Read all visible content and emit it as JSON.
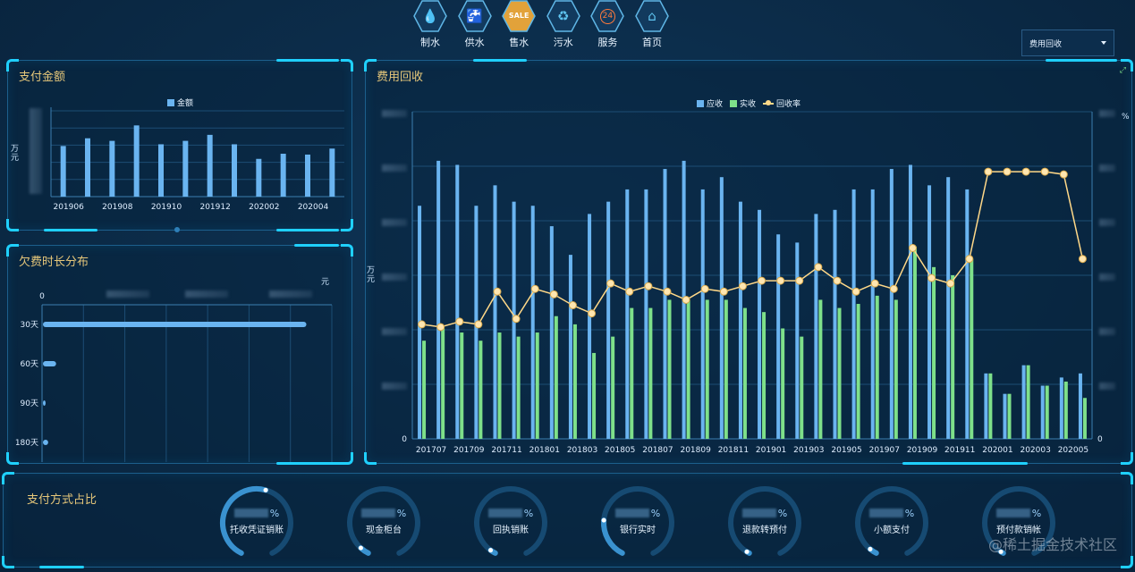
{
  "nav": {
    "items": [
      {
        "label": "制水",
        "icon": "water-drop-icon",
        "glyph": "💧",
        "active": false
      },
      {
        "label": "供水",
        "icon": "faucet-icon",
        "glyph": "🚰",
        "active": false
      },
      {
        "label": "售水",
        "icon": "sale-tag-icon",
        "glyph": "SALE",
        "active": true
      },
      {
        "label": "污水",
        "icon": "recycle-icon",
        "glyph": "♻",
        "active": false
      },
      {
        "label": "服务",
        "icon": "service-24h-icon",
        "glyph": "24",
        "active": false
      },
      {
        "label": "首页",
        "icon": "home-icon",
        "glyph": "⌂",
        "active": false
      }
    ]
  },
  "select": {
    "value": "费用回收"
  },
  "pay_amount": {
    "title": "支付金额",
    "legend": "金额",
    "unit": "万\n元",
    "x_labels": [
      "201906",
      "201908",
      "201910",
      "201912",
      "202002",
      "202004"
    ]
  },
  "arrears": {
    "title": "欠费时长分布",
    "unit": "元",
    "zero": "0"
  },
  "recovery": {
    "title": "费用回收",
    "legend_receivable": "应收",
    "legend_received": "实收",
    "legend_rate": "回收率",
    "left_unit": "万\n元",
    "right_unit": "%",
    "left_zero": "0",
    "right_zero": "0"
  },
  "payment_share": {
    "title": "支付方式占比",
    "gauges": [
      {
        "label": "托收凭证销账",
        "pct_sign": "%",
        "fraction": 0.55
      },
      {
        "label": "现金柜台",
        "pct_sign": "%",
        "fraction": 0.05
      },
      {
        "label": "回执销账",
        "pct_sign": "%",
        "fraction": 0.03
      },
      {
        "label": "银行实时",
        "pct_sign": "%",
        "fraction": 0.22
      },
      {
        "label": "退款转预付",
        "pct_sign": "%",
        "fraction": 0.01
      },
      {
        "label": "小额支付",
        "pct_sign": "%",
        "fraction": 0.04
      },
      {
        "label": "预付款销帐",
        "pct_sign": "%",
        "fraction": 0.01
      }
    ]
  },
  "watermark": "@稀土掘金技术社区",
  "colors": {
    "receivable": "#6ab4f0",
    "received": "#7ee08a",
    "rate": "#ffd888",
    "title": "#e6c77a",
    "accent": "#1fd0ff"
  },
  "chart_data": [
    {
      "type": "bar",
      "title": "支付金额",
      "categories": [
        "201906",
        "201907",
        "201908",
        "201909",
        "201910",
        "201911",
        "201912",
        "202001",
        "202002",
        "202003",
        "202004",
        "202005"
      ],
      "series": [
        {
          "name": "金额",
          "values": [
            59,
            68,
            65,
            83,
            61,
            65,
            72,
            61,
            44,
            50,
            49,
            56
          ]
        }
      ],
      "ylim": [
        0,
        100
      ],
      "ylabel": "万元"
    },
    {
      "type": "bar",
      "title": "欠费时长分布",
      "orientation": "horizontal",
      "categories": [
        "30天",
        "60天",
        "90天",
        "180天"
      ],
      "series": [
        {
          "name": "",
          "values": [
            100,
            5,
            1,
            2
          ]
        }
      ],
      "xlim": [
        0,
        110
      ],
      "xlabel": "元"
    },
    {
      "type": "bar",
      "title": "费用回收",
      "categories": [
        "201707",
        "201708",
        "201709",
        "201710",
        "201711",
        "201712",
        "201801",
        "201802",
        "201803",
        "201804",
        "201805",
        "201806",
        "201807",
        "201808",
        "201809",
        "201810",
        "201811",
        "201812",
        "201901",
        "201902",
        "201903",
        "201904",
        "201905",
        "201906",
        "201907",
        "201908",
        "201909",
        "201910",
        "201911",
        "201912",
        "202001",
        "202002",
        "202003",
        "202004",
        "202005",
        "202006"
      ],
      "series": [
        {
          "name": "应收",
          "values": [
            57,
            68,
            67,
            57,
            62,
            58,
            57,
            52,
            45,
            55,
            58,
            61,
            61,
            66,
            68,
            61,
            64,
            58,
            56,
            50,
            48,
            55,
            56,
            61,
            61,
            66,
            67,
            62,
            64,
            61,
            16,
            11,
            18,
            13,
            15,
            16
          ]
        },
        {
          "name": "实收",
          "values": [
            24,
            27,
            26,
            24,
            26,
            25,
            26,
            30,
            28,
            21,
            25,
            32,
            32,
            34,
            34,
            34,
            34,
            32,
            31,
            27,
            25,
            34,
            32,
            33,
            35,
            34,
            47,
            42,
            40,
            44,
            16,
            11,
            18,
            13,
            14,
            10
          ]
        },
        {
          "name": "回收率",
          "axis": "right",
          "values": [
            42,
            41,
            43,
            42,
            54,
            44,
            55,
            53,
            49,
            46,
            57,
            54,
            56,
            54,
            51,
            55,
            54,
            56,
            58,
            58,
            58,
            63,
            58,
            54,
            57,
            55,
            70,
            59,
            57,
            66,
            98,
            98,
            98,
            98,
            97,
            66
          ]
        }
      ],
      "ylim_left": [
        0,
        80
      ],
      "ylim_right": [
        0,
        120
      ],
      "ylabel_left": "万元",
      "ylabel_right": "%"
    }
  ]
}
